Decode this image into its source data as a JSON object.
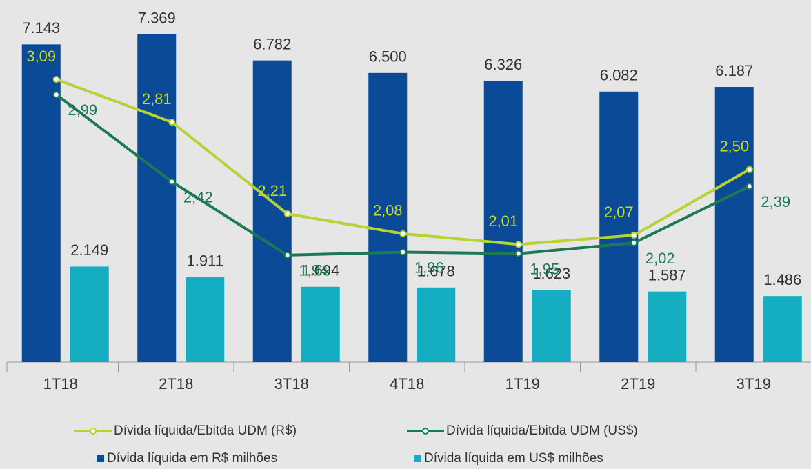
{
  "chart_data": {
    "type": "bar",
    "categories": [
      "1T18",
      "2T18",
      "3T18",
      "4T18",
      "1T19",
      "2T19",
      "3T19"
    ],
    "series": [
      {
        "name": "Dívida líquida/Ebitda UDM (R$)",
        "type": "line",
        "axis": "y2",
        "color": "#b5d334",
        "values": [
          3.09,
          2.81,
          2.21,
          2.08,
          2.01,
          2.07,
          2.5
        ],
        "value_labels": [
          "3,09",
          "2,81",
          "2,21",
          "2,08",
          "2,01",
          "2,07",
          "2,50"
        ]
      },
      {
        "name": "Dívida líquida/Ebitda UDM (US$)",
        "type": "line",
        "axis": "y2",
        "color": "#1b7a55",
        "values": [
          2.99,
          2.42,
          1.94,
          1.96,
          1.95,
          2.02,
          2.39
        ],
        "value_labels": [
          "2,99",
          "2,42",
          "1,94",
          "1,96",
          "1,95",
          "2,02",
          "2,39"
        ]
      },
      {
        "name": "Dívida líquida em R$ milhões",
        "type": "bar",
        "color": "#0b4a97",
        "values": [
          7143,
          7369,
          6782,
          6500,
          6326,
          6082,
          6187
        ],
        "value_labels": [
          "7.143",
          "7.369",
          "6.782",
          "6.500",
          "6.326",
          "6.082",
          "6.187"
        ]
      },
      {
        "name": "Dívida líquida em US$ milhões",
        "type": "bar",
        "color": "#14adc1",
        "values": [
          2149,
          1911,
          1694,
          1678,
          1623,
          1587,
          1486
        ],
        "value_labels": [
          "2.149",
          "1.911",
          "1.694",
          "1.678",
          "1.623",
          "1.587",
          "1.486"
        ]
      }
    ],
    "ylim": [
      0,
      7800
    ],
    "y2lim": [
      1.24,
      3.51
    ]
  }
}
